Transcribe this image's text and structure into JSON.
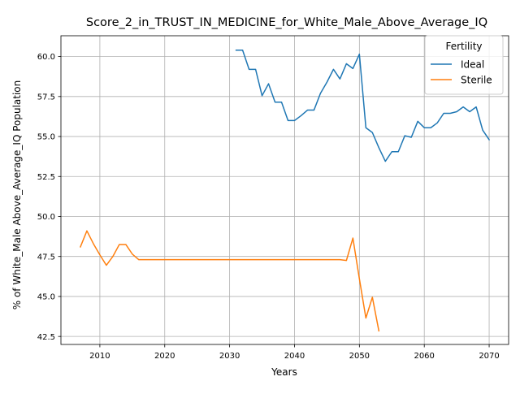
{
  "chart_data": {
    "type": "line",
    "title": "Score_2_in_TRUST_IN_MEDICINE_for_White_Male_Above_Average_IQ",
    "xlabel": "Years",
    "ylabel": "% of White_Male Above_Average_IQ Population",
    "xlim": [
      2004,
      2073
    ],
    "ylim": [
      42.0,
      61.3
    ],
    "xticks": [
      2010,
      2020,
      2030,
      2040,
      2050,
      2060,
      2070
    ],
    "yticks": [
      42.5,
      45.0,
      47.5,
      50.0,
      52.5,
      55.0,
      57.5,
      60.0
    ],
    "ytick_labels": [
      "42.5",
      "45.0",
      "47.5",
      "50.0",
      "52.5",
      "55.0",
      "57.5",
      "60.0"
    ],
    "grid": true,
    "legend": {
      "title": "Fertility",
      "placement": "top-right"
    },
    "series": [
      {
        "name": "Ideal",
        "color": "#1f77b4",
        "x": [
          2031,
          2032,
          2033,
          2034,
          2035,
          2036,
          2037,
          2038,
          2039,
          2040,
          2041,
          2042,
          2043,
          2044,
          2045,
          2046,
          2047,
          2048,
          2049,
          2050,
          2051,
          2052,
          2053,
          2054,
          2055,
          2056,
          2057,
          2058,
          2059,
          2060,
          2061,
          2062,
          2063,
          2064,
          2065,
          2066,
          2067,
          2068,
          2069,
          2070
        ],
        "y": [
          60.4,
          60.4,
          59.2,
          59.2,
          57.55,
          58.3,
          57.15,
          57.15,
          56.0,
          56.0,
          56.3,
          56.65,
          56.65,
          57.7,
          58.4,
          59.2,
          58.6,
          59.55,
          59.25,
          60.15,
          55.55,
          55.25,
          54.3,
          53.45,
          54.05,
          54.05,
          55.05,
          54.95,
          55.95,
          55.55,
          55.55,
          55.85,
          56.45,
          56.45,
          56.55,
          56.85,
          56.55,
          56.85,
          55.4,
          54.8
        ]
      },
      {
        "name": "Sterile",
        "color": "#ff7f0e",
        "x": [
          2007,
          2008,
          2009,
          2010,
          2011,
          2012,
          2013,
          2014,
          2015,
          2016,
          2017,
          2018,
          2019,
          2020,
          2021,
          2022,
          2023,
          2024,
          2025,
          2026,
          2027,
          2028,
          2029,
          2030,
          2031,
          2032,
          2033,
          2034,
          2035,
          2036,
          2037,
          2038,
          2039,
          2040,
          2041,
          2042,
          2043,
          2044,
          2045,
          2046,
          2047,
          2048,
          2049,
          2050,
          2051,
          2052,
          2053
        ],
        "y": [
          48.1,
          49.1,
          48.3,
          47.6,
          46.95,
          47.5,
          48.25,
          48.25,
          47.65,
          47.3,
          47.3,
          47.3,
          47.3,
          47.3,
          47.3,
          47.3,
          47.3,
          47.3,
          47.3,
          47.3,
          47.3,
          47.3,
          47.3,
          47.3,
          47.3,
          47.3,
          47.3,
          47.3,
          47.3,
          47.3,
          47.3,
          47.3,
          47.3,
          47.3,
          47.3,
          47.3,
          47.3,
          47.3,
          47.3,
          47.3,
          47.3,
          47.25,
          48.65,
          46.1,
          43.65,
          44.95,
          42.85
        ]
      }
    ]
  }
}
